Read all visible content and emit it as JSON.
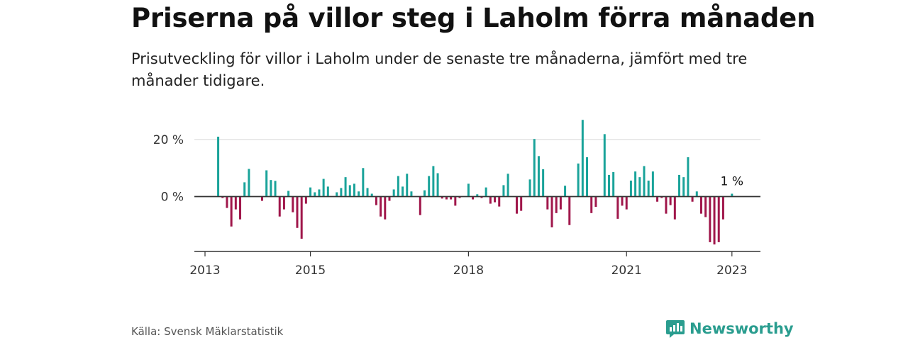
{
  "title": "Priserna på villor steg i Laholm förra månaden",
  "subtitle": "Prisutveckling för villor i Laholm under de senaste tre månaderna, jämfört med tre månader tidigare.",
  "source": "Källa: Svensk Mäklarstatistik",
  "brand": "Newsworthy",
  "colors": {
    "positive": "#1aa39a",
    "negative": "#a0174b",
    "brand": "#2a9d8f"
  },
  "chart_data": {
    "type": "bar",
    "x_start": "2013-01",
    "x_end": "2023-05",
    "ylim": [
      -20,
      25
    ],
    "yticks": [
      {
        "value": 0,
        "label": "0 %"
      },
      {
        "value": 20,
        "label": "20 %"
      }
    ],
    "xticks": [
      {
        "date": "2013-01",
        "label": "2013"
      },
      {
        "date": "2015-01",
        "label": "2015"
      },
      {
        "date": "2018-01",
        "label": "2018"
      },
      {
        "date": "2021-01",
        "label": "2021"
      },
      {
        "date": "2023-01",
        "label": "2023"
      }
    ],
    "last_label": "1 %",
    "grid": true,
    "series": [
      {
        "values": [
          {
            "date": "2013-04",
            "value": 21
          },
          {
            "date": "2013-05",
            "value": -0.5
          },
          {
            "date": "2013-06",
            "value": -4
          },
          {
            "date": "2013-07",
            "value": -10.5
          },
          {
            "date": "2013-08",
            "value": -4.5
          },
          {
            "date": "2013-09",
            "value": -8
          },
          {
            "date": "2013-10",
            "value": 5
          },
          {
            "date": "2013-11",
            "value": 9.7
          },
          {
            "date": "2013-12",
            "value": 0
          },
          {
            "date": "2014-01",
            "value": 0
          },
          {
            "date": "2014-02",
            "value": -1.5
          },
          {
            "date": "2014-03",
            "value": 9.2
          },
          {
            "date": "2014-04",
            "value": 5.8
          },
          {
            "date": "2014-05",
            "value": 5.5
          },
          {
            "date": "2014-06",
            "value": -7
          },
          {
            "date": "2014-07",
            "value": -4.5
          },
          {
            "date": "2014-08",
            "value": 2
          },
          {
            "date": "2014-09",
            "value": -5.5
          },
          {
            "date": "2014-10",
            "value": -11
          },
          {
            "date": "2014-11",
            "value": -14.8
          },
          {
            "date": "2014-12",
            "value": -2.5
          },
          {
            "date": "2015-01",
            "value": 3.2
          },
          {
            "date": "2015-02",
            "value": 1.5
          },
          {
            "date": "2015-03",
            "value": 2.5
          },
          {
            "date": "2015-04",
            "value": 6.2
          },
          {
            "date": "2015-05",
            "value": 3.5
          },
          {
            "date": "2015-06",
            "value": 0
          },
          {
            "date": "2015-07",
            "value": 1.5
          },
          {
            "date": "2015-08",
            "value": 3
          },
          {
            "date": "2015-09",
            "value": 6.8
          },
          {
            "date": "2015-10",
            "value": 4
          },
          {
            "date": "2015-11",
            "value": 4.5
          },
          {
            "date": "2015-12",
            "value": 1.8
          },
          {
            "date": "2016-01",
            "value": 10
          },
          {
            "date": "2016-02",
            "value": 3
          },
          {
            "date": "2016-03",
            "value": 1
          },
          {
            "date": "2016-04",
            "value": -3
          },
          {
            "date": "2016-05",
            "value": -7
          },
          {
            "date": "2016-06",
            "value": -8
          },
          {
            "date": "2016-07",
            "value": -1.5
          },
          {
            "date": "2016-08",
            "value": 2.5
          },
          {
            "date": "2016-09",
            "value": 7.2
          },
          {
            "date": "2016-10",
            "value": 3.5
          },
          {
            "date": "2016-11",
            "value": 8
          },
          {
            "date": "2016-12",
            "value": 1.8
          },
          {
            "date": "2017-01",
            "value": 0
          },
          {
            "date": "2017-02",
            "value": -6.5
          },
          {
            "date": "2017-03",
            "value": 2.2
          },
          {
            "date": "2017-04",
            "value": 7.2
          },
          {
            "date": "2017-05",
            "value": 10.7
          },
          {
            "date": "2017-06",
            "value": 8.2
          },
          {
            "date": "2017-07",
            "value": -0.7
          },
          {
            "date": "2017-08",
            "value": -1
          },
          {
            "date": "2017-09",
            "value": -1
          },
          {
            "date": "2017-10",
            "value": -3.2
          },
          {
            "date": "2017-11",
            "value": -0.5
          },
          {
            "date": "2017-12",
            "value": 0
          },
          {
            "date": "2018-01",
            "value": 4.5
          },
          {
            "date": "2018-02",
            "value": -1
          },
          {
            "date": "2018-03",
            "value": 0.8
          },
          {
            "date": "2018-04",
            "value": -0.5
          },
          {
            "date": "2018-05",
            "value": 3.2
          },
          {
            "date": "2018-06",
            "value": -2.5
          },
          {
            "date": "2018-07",
            "value": -2
          },
          {
            "date": "2018-08",
            "value": -3.5
          },
          {
            "date": "2018-09",
            "value": 4
          },
          {
            "date": "2018-10",
            "value": 8
          },
          {
            "date": "2018-11",
            "value": 0
          },
          {
            "date": "2018-12",
            "value": -6
          },
          {
            "date": "2019-01",
            "value": -5
          },
          {
            "date": "2019-02",
            "value": 0
          },
          {
            "date": "2019-03",
            "value": 6
          },
          {
            "date": "2019-04",
            "value": 20.2
          },
          {
            "date": "2019-05",
            "value": 14.2
          },
          {
            "date": "2019-06",
            "value": 9.6
          },
          {
            "date": "2019-07",
            "value": -4.5
          },
          {
            "date": "2019-08",
            "value": -10.8
          },
          {
            "date": "2019-09",
            "value": -5.8
          },
          {
            "date": "2019-10",
            "value": -4.5
          },
          {
            "date": "2019-11",
            "value": 3.8
          },
          {
            "date": "2019-12",
            "value": -10
          },
          {
            "date": "2020-01",
            "value": 0
          },
          {
            "date": "2020-02",
            "value": 11.6
          },
          {
            "date": "2020-03",
            "value": 26.9
          },
          {
            "date": "2020-04",
            "value": 13.8
          },
          {
            "date": "2020-05",
            "value": -5.8
          },
          {
            "date": "2020-06",
            "value": -3.6
          },
          {
            "date": "2020-07",
            "value": 0
          },
          {
            "date": "2020-08",
            "value": 21.9
          },
          {
            "date": "2020-09",
            "value": 7.6
          },
          {
            "date": "2020-10",
            "value": 8.6
          },
          {
            "date": "2020-11",
            "value": -7.8
          },
          {
            "date": "2020-12",
            "value": -3.2
          },
          {
            "date": "2021-01",
            "value": -4.5
          },
          {
            "date": "2021-02",
            "value": 5.6
          },
          {
            "date": "2021-03",
            "value": 8.8
          },
          {
            "date": "2021-04",
            "value": 6.8
          },
          {
            "date": "2021-05",
            "value": 10.7
          },
          {
            "date": "2021-06",
            "value": 5.6
          },
          {
            "date": "2021-07",
            "value": 8.8
          },
          {
            "date": "2021-08",
            "value": -1.8
          },
          {
            "date": "2021-09",
            "value": -0.5
          },
          {
            "date": "2021-10",
            "value": -6
          },
          {
            "date": "2021-11",
            "value": -3
          },
          {
            "date": "2021-12",
            "value": -8
          },
          {
            "date": "2022-01",
            "value": 7.6
          },
          {
            "date": "2022-02",
            "value": 6.8
          },
          {
            "date": "2022-03",
            "value": 13.8
          },
          {
            "date": "2022-04",
            "value": -1.8
          },
          {
            "date": "2022-05",
            "value": 1.8
          },
          {
            "date": "2022-06",
            "value": -6
          },
          {
            "date": "2022-07",
            "value": -7.2
          },
          {
            "date": "2022-08",
            "value": -16
          },
          {
            "date": "2022-09",
            "value": -16.8
          },
          {
            "date": "2022-10",
            "value": -16
          },
          {
            "date": "2022-11",
            "value": -8
          },
          {
            "date": "2022-12",
            "value": 0
          },
          {
            "date": "2023-01",
            "value": 1
          }
        ]
      }
    ]
  }
}
